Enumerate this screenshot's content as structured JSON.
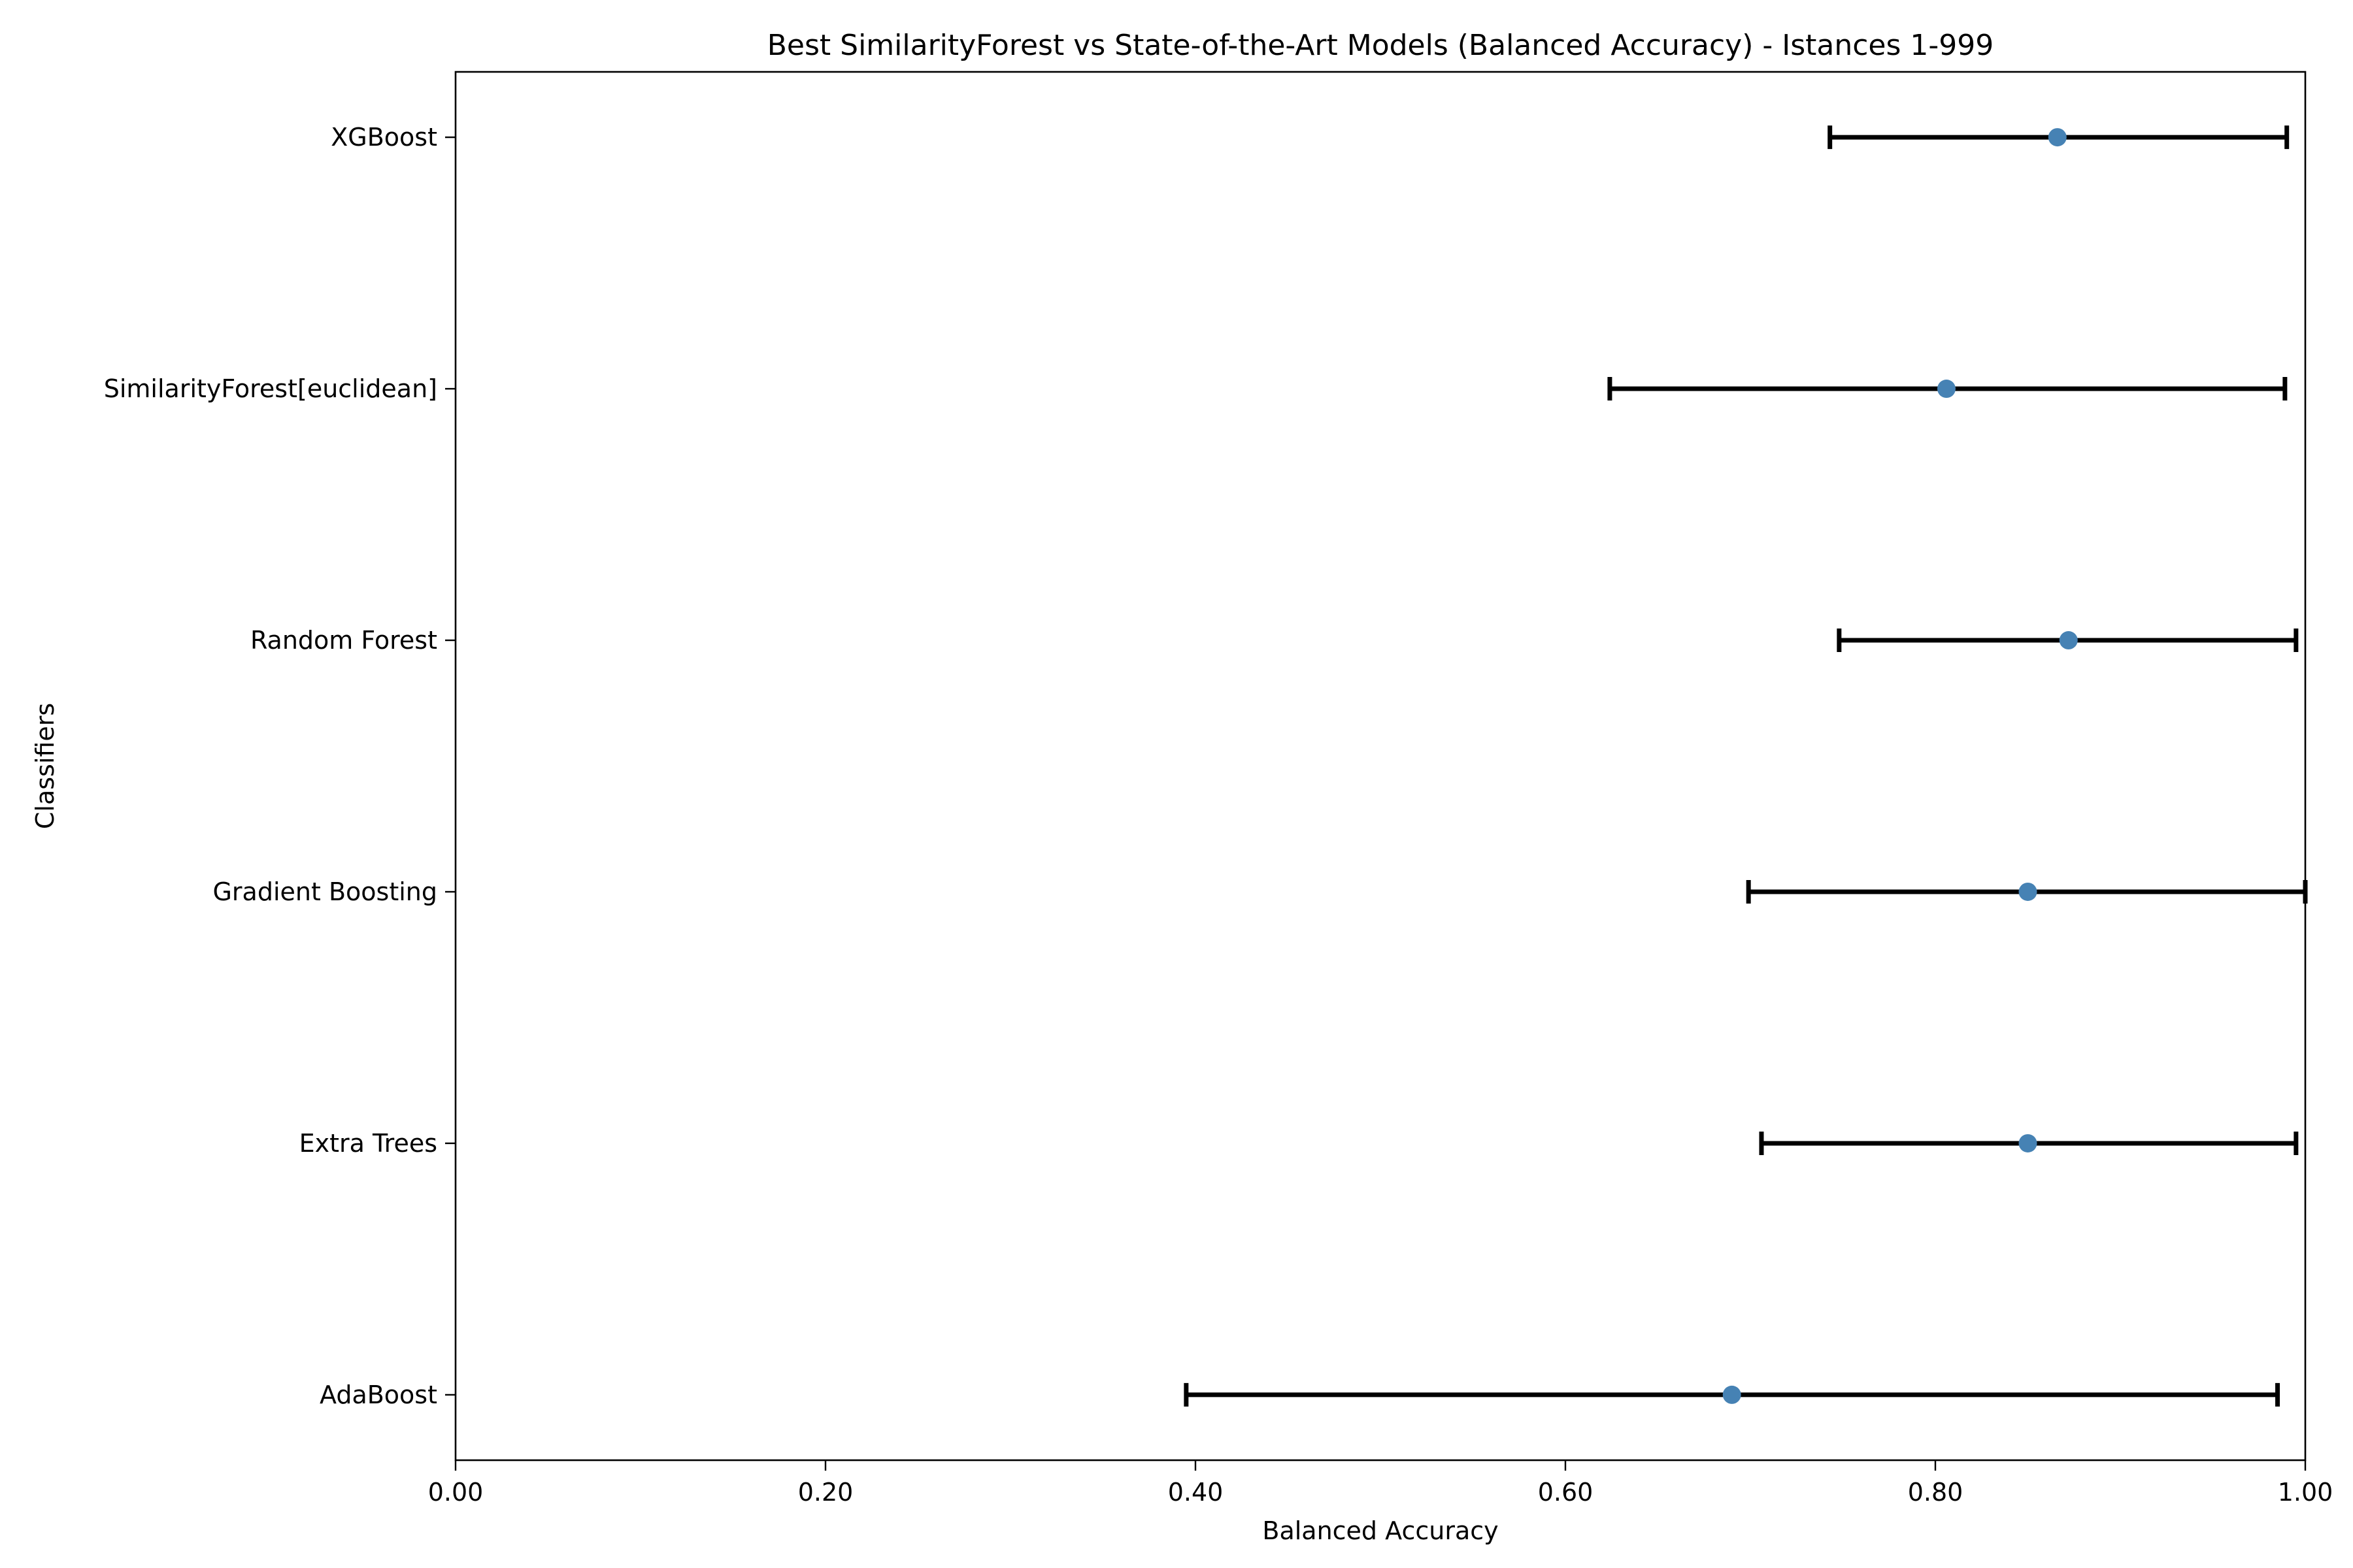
{
  "chart_data": {
    "type": "scatter",
    "title": "Best SimilarityForest vs State-of-the-Art Models (Balanced Accuracy) - Istances 1-999",
    "xlabel": "Balanced Accuracy",
    "ylabel": "Classifiers",
    "xlim": [
      0.0,
      1.0
    ],
    "xticks": [
      "0.00",
      "0.20",
      "0.40",
      "0.60",
      "0.80",
      "1.00"
    ],
    "grid": false,
    "legend": "none",
    "categories": [
      "AdaBoost",
      "Extra Trees",
      "Gradient Boosting",
      "Random Forest",
      "SimilarityForest[euclidean]",
      "XGBoost"
    ],
    "series": [
      {
        "values": [
          0.69,
          0.85,
          0.85,
          0.872,
          0.806,
          0.866
        ],
        "err_low": [
          0.395,
          0.706,
          0.699,
          0.748,
          0.624,
          0.743
        ],
        "err_high": [
          0.985,
          0.995,
          1.0,
          0.995,
          0.989,
          0.99
        ]
      }
    ],
    "colors": {
      "marker": "#4682b4",
      "errorbar": "#000000",
      "axes": "#000000"
    }
  }
}
